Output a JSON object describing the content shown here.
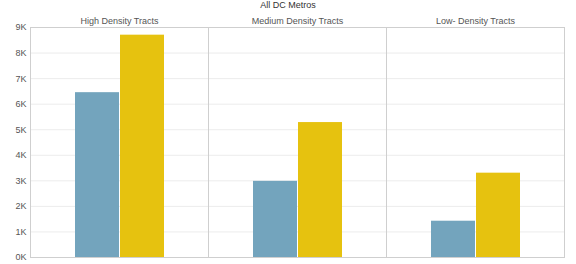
{
  "chart_data": {
    "type": "bar",
    "title": "All DC Metros",
    "categories": [
      "High Density Tracts",
      "Medium Density Tracts",
      "Low- Density Tracts"
    ],
    "series": [
      {
        "color": "#73a4bd",
        "values": [
          6450,
          2980,
          1420
        ]
      },
      {
        "color": "#e6c20f",
        "values": [
          8700,
          5280,
          3300
        ]
      }
    ],
    "ylim": [
      0,
      9000
    ],
    "yticks": [
      {
        "value": 0,
        "label": "0K"
      },
      {
        "value": 1000,
        "label": "1K"
      },
      {
        "value": 2000,
        "label": "2K"
      },
      {
        "value": 3000,
        "label": "3K"
      },
      {
        "value": 4000,
        "label": "4K"
      },
      {
        "value": 5000,
        "label": "5K"
      },
      {
        "value": 6000,
        "label": "6K"
      },
      {
        "value": 7000,
        "label": "7K"
      },
      {
        "value": 8000,
        "label": "8K"
      },
      {
        "value": 9000,
        "label": "9K"
      }
    ],
    "grid": true
  }
}
